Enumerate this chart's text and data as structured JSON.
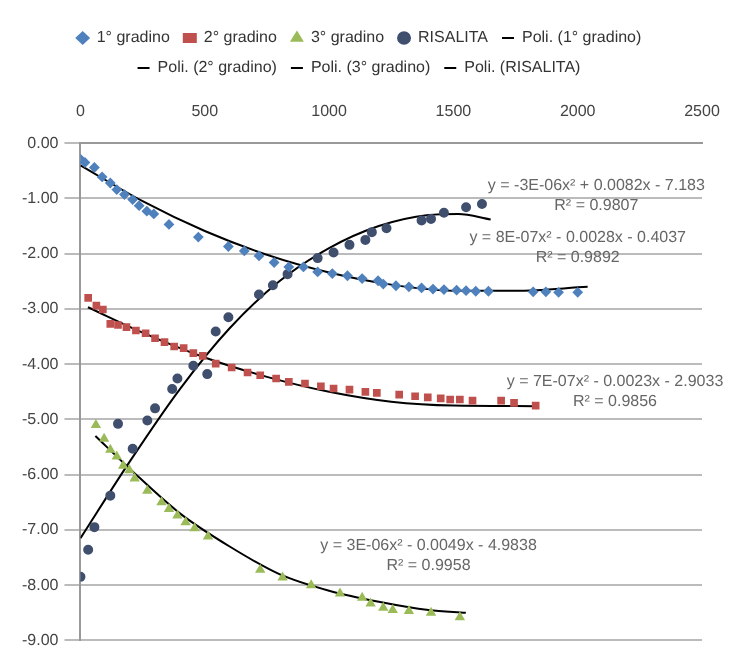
{
  "chart_data": {
    "type": "scatter",
    "xlim": [
      0,
      2500
    ],
    "xticks": [
      0,
      500,
      1000,
      1500,
      2000,
      2500
    ],
    "ylim": [
      -9,
      0
    ],
    "yticks": [
      {
        "value": 0,
        "label": "0.00"
      },
      {
        "value": -1,
        "label": "-1.00"
      },
      {
        "value": -2,
        "label": "-2.00"
      },
      {
        "value": -3,
        "label": "-3.00"
      },
      {
        "value": -4,
        "label": "-4.00"
      },
      {
        "value": -5,
        "label": "-5.00"
      },
      {
        "value": -6,
        "label": "-6.00"
      },
      {
        "value": -7,
        "label": "-7.00"
      },
      {
        "value": -8,
        "label": "-8.00"
      },
      {
        "value": -9,
        "label": "-9.00"
      }
    ],
    "grid": "y",
    "legend": "top",
    "series": [
      {
        "name": "1° gradino",
        "type": "scatter",
        "marker": "diamond",
        "color": "#4f81bd",
        "x": [
          0,
          18,
          56,
          87,
          120,
          146,
          177,
          210,
          236,
          267,
          295,
          356,
          474,
          595,
          659,
          718,
          779,
          838,
          897,
          954,
          1013,
          1074,
          1133,
          1197,
          1218,
          1269,
          1321,
          1372,
          1418,
          1462,
          1513,
          1551,
          1590,
          1641,
          1821,
          1872,
          1923,
          2000
        ],
        "values": [
          -0.29,
          -0.35,
          -0.44,
          -0.61,
          -0.72,
          -0.84,
          -0.93,
          -1.02,
          -1.13,
          -1.23,
          -1.28,
          -1.47,
          -1.7,
          -1.87,
          -1.95,
          -2.04,
          -2.16,
          -2.24,
          -2.24,
          -2.33,
          -2.36,
          -2.4,
          -2.45,
          -2.49,
          -2.55,
          -2.58,
          -2.6,
          -2.62,
          -2.64,
          -2.65,
          -2.66,
          -2.67,
          -2.68,
          -2.68,
          -2.69,
          -2.69,
          -2.7,
          -2.7
        ]
      },
      {
        "name": "2° gradino",
        "type": "scatter",
        "marker": "square",
        "color": "#c0504d",
        "x": [
          31,
          64,
          90,
          120,
          151,
          185,
          223,
          262,
          300,
          338,
          377,
          415,
          454,
          492,
          544,
          608,
          672,
          723,
          787,
          838,
          903,
          967,
          1018,
          1082,
          1146,
          1192,
          1282,
          1346,
          1397,
          1449,
          1487,
          1526,
          1577,
          1692,
          1744,
          1831
        ],
        "values": [
          -2.8,
          -2.94,
          -3.01,
          -3.27,
          -3.29,
          -3.33,
          -3.39,
          -3.44,
          -3.53,
          -3.6,
          -3.68,
          -3.71,
          -3.8,
          -3.85,
          -3.99,
          -4.06,
          -4.15,
          -4.2,
          -4.26,
          -4.32,
          -4.35,
          -4.4,
          -4.44,
          -4.46,
          -4.5,
          -4.52,
          -4.55,
          -4.58,
          -4.6,
          -4.62,
          -4.64,
          -4.64,
          -4.66,
          -4.66,
          -4.7,
          -4.75
        ]
      },
      {
        "name": "3° gradino",
        "type": "scatter",
        "marker": "triangle",
        "color": "#9bbb59",
        "x": [
          62,
          95,
          120,
          146,
          172,
          197,
          218,
          269,
          326,
          356,
          390,
          423,
          459,
          513,
          723,
          813,
          928,
          1044,
          1133,
          1167,
          1218,
          1256,
          1321,
          1410,
          1526
        ],
        "values": [
          -5.1,
          -5.35,
          -5.55,
          -5.67,
          -5.84,
          -5.92,
          -6.07,
          -6.29,
          -6.5,
          -6.62,
          -6.74,
          -6.86,
          -6.97,
          -7.12,
          -7.72,
          -7.86,
          -8.0,
          -8.15,
          -8.23,
          -8.33,
          -8.41,
          -8.45,
          -8.47,
          -8.5,
          -8.58
        ]
      },
      {
        "name": "RISALITA",
        "type": "scatter",
        "marker": "circle",
        "color": "#404f6e",
        "x": [
          0,
          31,
          56,
          120,
          151,
          210,
          269,
          300,
          369,
          390,
          454,
          510,
          544,
          595,
          718,
          774,
          833,
          903,
          954,
          1018,
          1082,
          1146,
          1172,
          1231,
          1372,
          1410,
          1462,
          1551,
          1615
        ],
        "values": [
          -7.85,
          -7.36,
          -6.95,
          -6.38,
          -5.08,
          -5.53,
          -5.02,
          -4.8,
          -4.45,
          -4.26,
          -4.03,
          -4.18,
          -3.41,
          -3.15,
          -2.74,
          -2.57,
          -2.37,
          null,
          -2.08,
          -1.98,
          -1.84,
          -1.75,
          -1.61,
          -1.54,
          -1.4,
          -1.37,
          -1.26,
          -1.16,
          -1.1
        ]
      },
      {
        "name": "Poli. (1° gradino)",
        "type": "line",
        "color": "#000000",
        "x": [
          0,
          250,
          500,
          750,
          1000,
          1250,
          1500,
          1750,
          2040
        ],
        "values": [
          -0.4,
          -1.05,
          -1.59,
          -2.02,
          -2.34,
          -2.56,
          -2.67,
          -2.67,
          -2.6
        ]
      },
      {
        "name": "Poli. (2° gradino)",
        "type": "line",
        "color": "#000000",
        "x": [
          30,
          250,
          500,
          750,
          1000,
          1250,
          1500,
          1830
        ],
        "values": [
          -2.97,
          -3.43,
          -3.88,
          -4.23,
          -4.5,
          -4.68,
          -4.75,
          -4.76
        ]
      },
      {
        "name": "Poli. (3° gradino)",
        "type": "line",
        "color": "#000000",
        "x": [
          60,
          200,
          400,
          600,
          800,
          1000,
          1200,
          1400,
          1550
        ],
        "values": [
          -5.3,
          -5.9,
          -6.7,
          -7.3,
          -7.8,
          -8.1,
          -8.3,
          -8.45,
          -8.5
        ]
      },
      {
        "name": "Poli. (RISALITA)",
        "type": "line",
        "color": "#000000",
        "x": [
          0,
          200,
          400,
          600,
          800,
          1000,
          1200,
          1400,
          1520,
          1650
        ],
        "values": [
          -7.15,
          -5.75,
          -4.45,
          -3.35,
          -2.5,
          -1.9,
          -1.5,
          -1.3,
          -1.28,
          -1.38
        ]
      }
    ],
    "annotations": [
      "y = -3E-06x² + 0.0082x - 7.183",
      "R² = 0.9807",
      "y = 8E-07x² - 0.0028x - 0.4037",
      "R² = 0.9892",
      "y = 7E-07x² - 0.0023x - 2.9033",
      "R² = 0.9856",
      "y = 3E-06x² - 0.0049x - 4.9838",
      "R² = 0.9958"
    ]
  }
}
